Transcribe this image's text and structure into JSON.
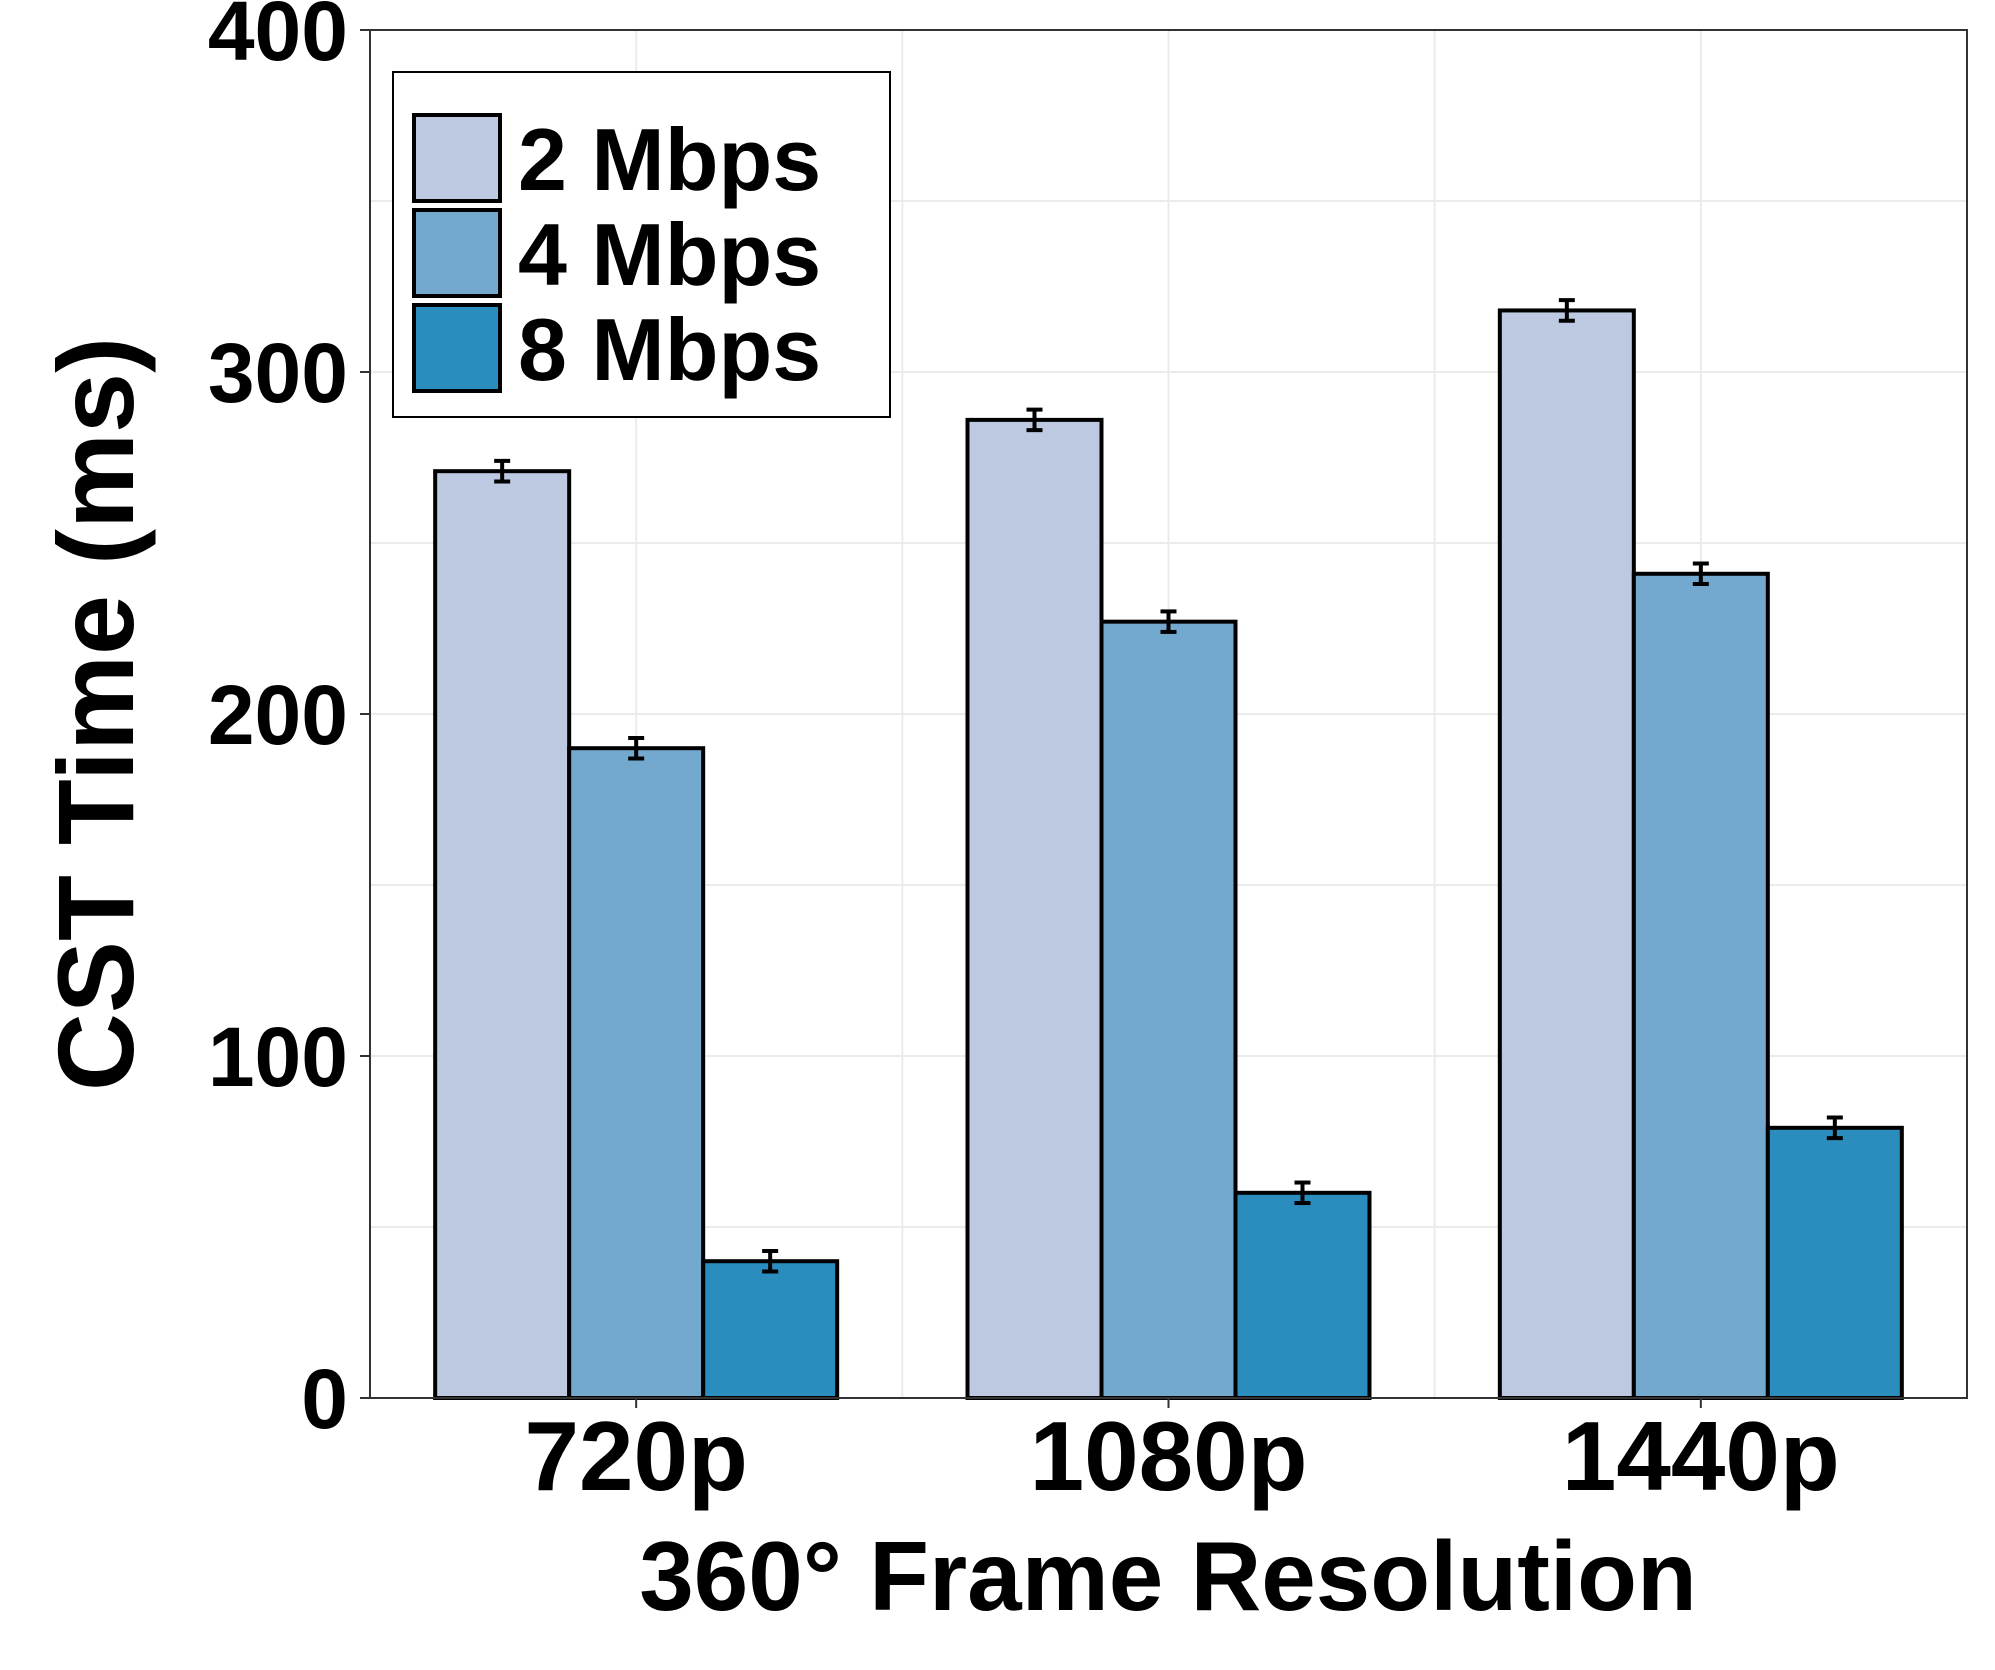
{
  "chart_data": {
    "type": "bar",
    "xlabel": "360° Frame Resolution",
    "ylabel": "CST Time (ms)",
    "categories": [
      "720p",
      "1080p",
      "1440p"
    ],
    "ylim": [
      0,
      400
    ],
    "yticks": [
      0,
      100,
      200,
      300,
      400
    ],
    "grid": true,
    "legend_position": "top-left",
    "series": [
      {
        "name": "2 Mbps",
        "color": "#bdc9e1",
        "values": [
          271,
          286,
          318
        ],
        "errors": [
          3,
          3,
          3
        ]
      },
      {
        "name": "4 Mbps",
        "color": "#74a9cf",
        "values": [
          190,
          227,
          241
        ],
        "errors": [
          3,
          3,
          3
        ]
      },
      {
        "name": "8 Mbps",
        "color": "#2b8cbe",
        "values": [
          40,
          60,
          79
        ],
        "errors": [
          3,
          3,
          3
        ]
      }
    ],
    "error_bars": true
  }
}
